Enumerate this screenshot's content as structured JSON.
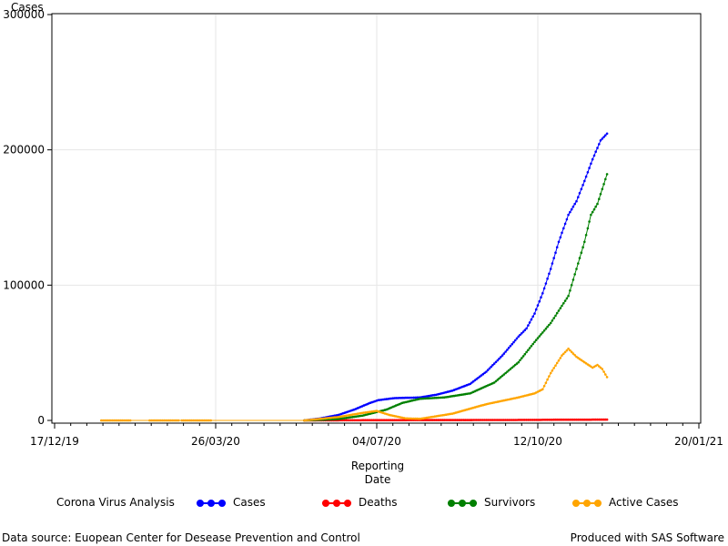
{
  "chart_data": {
    "type": "line",
    "ylabel": "Cases",
    "xlabel_line1": "Reporting",
    "xlabel_line2": "Date",
    "y_ticks": [
      0,
      100000,
      200000,
      300000
    ],
    "y_tick_labels": [
      "0",
      "100000",
      "200000",
      "300000"
    ],
    "ylim": [
      0,
      300000
    ],
    "x_ticks": [
      "2019-12-17",
      "2020-03-26",
      "2020-07-04",
      "2020-10-12",
      "2021-01-20"
    ],
    "x_tick_labels": [
      "17/12/19",
      "26/03/20",
      "04/07/20",
      "12/10/20",
      "20/01/21"
    ],
    "xlim": [
      "2019-12-17",
      "2021-01-20"
    ],
    "grid": true,
    "series": [
      {
        "name": "Cases",
        "color": "#0000ff",
        "points": [
          [
            "2020-05-20",
            0
          ],
          [
            "2020-05-30",
            1500
          ],
          [
            "2020-06-10",
            4000
          ],
          [
            "2020-06-20",
            8000
          ],
          [
            "2020-06-30",
            13000
          ],
          [
            "2020-07-05",
            15000
          ],
          [
            "2020-07-15",
            16500
          ],
          [
            "2020-07-31",
            17000
          ],
          [
            "2020-08-10",
            19000
          ],
          [
            "2020-08-20",
            22000
          ],
          [
            "2020-08-31",
            27000
          ],
          [
            "2020-09-10",
            36000
          ],
          [
            "2020-09-20",
            48000
          ],
          [
            "2020-09-30",
            62000
          ],
          [
            "2020-10-05",
            68000
          ],
          [
            "2020-10-10",
            79000
          ],
          [
            "2020-10-15",
            94000
          ],
          [
            "2020-10-20",
            112000
          ],
          [
            "2020-10-25",
            132000
          ],
          [
            "2020-10-31",
            152000
          ],
          [
            "2020-11-05",
            162000
          ],
          [
            "2020-11-10",
            177000
          ],
          [
            "2020-11-15",
            193000
          ],
          [
            "2020-11-20",
            207000
          ],
          [
            "2020-11-24",
            212000
          ]
        ]
      },
      {
        "name": "Deaths",
        "color": "#ff0000",
        "points": [
          [
            "2020-05-20",
            0
          ],
          [
            "2020-07-01",
            200
          ],
          [
            "2020-08-31",
            300
          ],
          [
            "2020-10-12",
            400
          ],
          [
            "2020-10-20",
            500
          ],
          [
            "2020-11-24",
            600
          ]
        ]
      },
      {
        "name": "Survivors",
        "color": "#008000",
        "points": [
          [
            "2020-05-20",
            0
          ],
          [
            "2020-06-10",
            1000
          ],
          [
            "2020-06-25",
            3500
          ],
          [
            "2020-07-10",
            8000
          ],
          [
            "2020-07-20",
            13000
          ],
          [
            "2020-07-31",
            16000
          ],
          [
            "2020-08-15",
            17000
          ],
          [
            "2020-08-31",
            20000
          ],
          [
            "2020-09-15",
            28000
          ],
          [
            "2020-09-30",
            43000
          ],
          [
            "2020-10-10",
            58000
          ],
          [
            "2020-10-20",
            72000
          ],
          [
            "2020-10-31",
            92000
          ],
          [
            "2020-11-05",
            112000
          ],
          [
            "2020-11-10",
            132000
          ],
          [
            "2020-11-14",
            152000
          ],
          [
            "2020-11-18",
            160000
          ],
          [
            "2020-11-24",
            182000
          ]
        ]
      },
      {
        "name": "Active Cases",
        "color": "#ffa500",
        "points": [
          [
            "2020-01-15",
            0
          ],
          [
            "2020-02-14",
            0
          ],
          [
            "2020-03-05",
            0
          ],
          [
            "2020-05-20",
            0
          ],
          [
            "2020-06-10",
            2500
          ],
          [
            "2020-06-25",
            5500
          ],
          [
            "2020-07-04",
            7000
          ],
          [
            "2020-07-12",
            4000
          ],
          [
            "2020-07-22",
            1500
          ],
          [
            "2020-07-31",
            1200
          ],
          [
            "2020-08-20",
            5000
          ],
          [
            "2020-09-10",
            12000
          ],
          [
            "2020-09-30",
            17000
          ],
          [
            "2020-10-10",
            20000
          ],
          [
            "2020-10-15",
            23000
          ],
          [
            "2020-10-20",
            35000
          ],
          [
            "2020-10-27",
            48000
          ],
          [
            "2020-10-31",
            53000
          ],
          [
            "2020-11-05",
            47000
          ],
          [
            "2020-11-10",
            43000
          ],
          [
            "2020-11-15",
            39000
          ],
          [
            "2020-11-18",
            41000
          ],
          [
            "2020-11-21",
            38000
          ],
          [
            "2020-11-24",
            32000
          ]
        ]
      }
    ]
  },
  "legend": {
    "title": "Corona Virus Analysis",
    "items": [
      {
        "label": "Cases",
        "color": "#0000ff"
      },
      {
        "label": "Deaths",
        "color": "#ff0000"
      },
      {
        "label": "Survivors",
        "color": "#008000"
      },
      {
        "label": "Active Cases",
        "color": "#ffa500"
      }
    ]
  },
  "footer": {
    "source": "Data source: Euopean Center for Desease Prevention and Control",
    "produced": "Produced with SAS Software"
  }
}
